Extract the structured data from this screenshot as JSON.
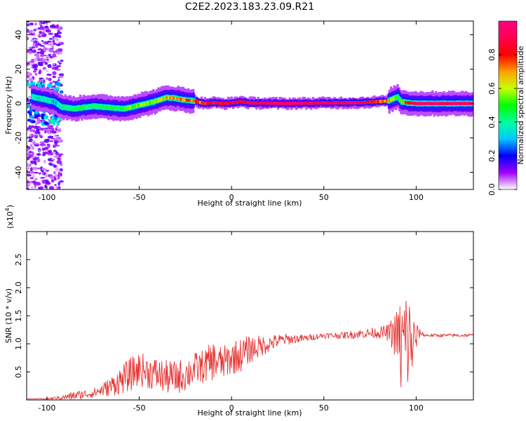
{
  "figure": {
    "title": "C2E2.2023.183.23.09.R21"
  },
  "chart_data": [
    {
      "type": "heatmap",
      "xlabel": "Height of straight line (km)",
      "ylabel": "Frequency (Hz)",
      "xlim": [
        -111,
        131
      ],
      "ylim": [
        -50,
        48
      ],
      "xticks": [
        -100,
        -50,
        0,
        50,
        100
      ],
      "xtick_labels": [
        "-100",
        "-50",
        "0",
        "50",
        "100"
      ],
      "yticks": [
        -40,
        -20,
        0,
        20,
        40
      ],
      "ytick_labels": [
        "-40",
        "-20",
        "0",
        "20",
        "40"
      ],
      "colorbar": {
        "label": "Normalized spectral amplitude",
        "range": [
          0,
          1
        ],
        "ticks": [
          0.0,
          0.2,
          0.4,
          0.6,
          0.8
        ],
        "tick_labels": [
          "0.0",
          "0.2",
          "0.4",
          "0.6",
          "0.8"
        ],
        "colors": [
          "#ffffff",
          "#a000ff",
          "#0000ff",
          "#00c8ff",
          "#00ffa0",
          "#00ff00",
          "#c8ff00",
          "#ffa000",
          "#ff0000",
          "#ff0050",
          "#ff0080"
        ]
      },
      "ridge": {
        "x": [
          -108,
          -100,
          -96,
          -92,
          -85,
          -75,
          -65,
          -58,
          -50,
          -42,
          -35,
          -30,
          -25,
          -20,
          -15,
          -10,
          -5,
          0,
          5,
          10,
          20,
          30,
          50,
          70,
          85,
          88,
          90,
          92,
          95,
          100,
          110,
          131
        ],
        "freq": [
          4,
          2,
          1,
          -2,
          -3,
          -1.5,
          -2.5,
          -3,
          -1,
          1,
          3.5,
          3,
          2,
          1.5,
          0,
          0.5,
          0,
          0.3,
          1.2,
          0.3,
          0.2,
          0,
          0.3,
          0.5,
          1.5,
          3,
          4,
          1,
          0.5,
          0,
          0,
          0
        ],
        "amplitude": [
          0.4,
          0.35,
          0.3,
          0.4,
          0.45,
          0.45,
          0.45,
          0.5,
          0.55,
          0.6,
          0.65,
          0.7,
          0.7,
          0.75,
          0.8,
          0.85,
          0.85,
          0.95,
          0.85,
          0.95,
          0.95,
          0.95,
          0.95,
          0.95,
          0.7,
          0.55,
          0.45,
          0.6,
          0.85,
          0.95,
          0.95,
          0.95
        ]
      }
    },
    {
      "type": "line",
      "xlabel": "Height of straight line (km)",
      "ylabel": "SNR (10 * v/v)",
      "y_multiplier": "(x10",
      "y_multiplier_exp": "4",
      "y_multiplier_close": ")",
      "xlim": [
        -111,
        131
      ],
      "ylim": [
        0,
        3.0
      ],
      "xticks": [
        -100,
        -50,
        0,
        50,
        100
      ],
      "xtick_labels": [
        "-100",
        "-50",
        "0",
        "50",
        "100"
      ],
      "yticks": [
        0.5,
        1.0,
        1.5,
        2.0,
        2.5
      ],
      "ytick_labels": [
        "0.5",
        "1.0",
        "1.5",
        "2.0",
        "2.5"
      ],
      "color": "#e63030",
      "series": [
        {
          "x": [
            -111,
            -100,
            -90,
            -85,
            -80,
            -75,
            -70,
            -65,
            -60,
            -55,
            -50,
            -45,
            -40,
            -35,
            -30,
            -25,
            -20,
            -15,
            -10,
            -5,
            0,
            5,
            10,
            15,
            20,
            25,
            30,
            40,
            50,
            60,
            70,
            80,
            85,
            90,
            92,
            94,
            96,
            98,
            100,
            102,
            105,
            110,
            120,
            131
          ],
          "trend": [
            0.02,
            0.02,
            0.05,
            0.08,
            0.1,
            0.12,
            0.18,
            0.25,
            0.35,
            0.45,
            0.55,
            0.5,
            0.45,
            0.4,
            0.4,
            0.45,
            0.55,
            0.6,
            0.7,
            0.65,
            0.75,
            0.8,
            0.9,
            0.95,
            1.0,
            1.05,
            1.08,
            1.1,
            1.15,
            1.15,
            1.18,
            1.2,
            1.2,
            1.15,
            0.9,
            1.0,
            1.05,
            1.0,
            1.1,
            1.2,
            1.15,
            1.15,
            1.15,
            1.15
          ],
          "spread": [
            0.0,
            0.01,
            0.05,
            0.08,
            0.08,
            0.08,
            0.12,
            0.18,
            0.25,
            0.3,
            0.3,
            0.3,
            0.3,
            0.3,
            0.3,
            0.3,
            0.3,
            0.3,
            0.35,
            0.3,
            0.3,
            0.3,
            0.25,
            0.2,
            0.15,
            0.12,
            0.1,
            0.06,
            0.05,
            0.06,
            0.08,
            0.1,
            0.15,
            0.5,
            1.0,
            1.2,
            0.9,
            0.6,
            0.3,
            0.06,
            0.03,
            0.03,
            0.03,
            0.03
          ]
        }
      ]
    }
  ]
}
